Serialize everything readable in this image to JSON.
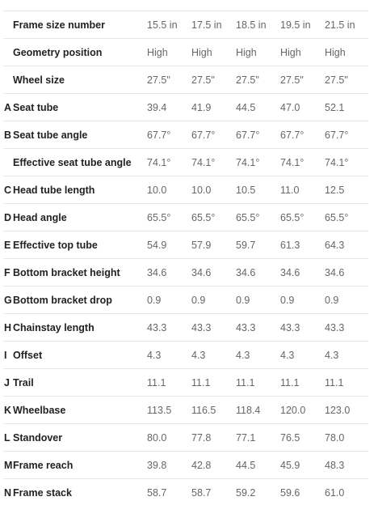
{
  "sizes": [
    "15.5 in",
    "17.5 in",
    "18.5 in",
    "19.5 in",
    "21.5 in"
  ],
  "rows": [
    {
      "letter": "",
      "label": "Frame size number",
      "values": [
        "15.5 in",
        "17.5 in",
        "18.5 in",
        "19.5 in",
        "21.5 in"
      ]
    },
    {
      "letter": "",
      "label": "Geometry position",
      "values": [
        "High",
        "High",
        "High",
        "High",
        "High"
      ]
    },
    {
      "letter": "",
      "label": "Wheel size",
      "values": [
        "27.5\"",
        "27.5\"",
        "27.5\"",
        "27.5\"",
        "27.5\""
      ]
    },
    {
      "letter": "A",
      "label": "Seat tube",
      "values": [
        "39.4",
        "41.9",
        "44.5",
        "47.0",
        "52.1"
      ]
    },
    {
      "letter": "B",
      "label": "Seat tube angle",
      "values": [
        "67.7°",
        "67.7°",
        "67.7°",
        "67.7°",
        "67.7°"
      ]
    },
    {
      "letter": "",
      "label": "Effective seat tube angle",
      "values": [
        "74.1°",
        "74.1°",
        "74.1°",
        "74.1°",
        "74.1°"
      ]
    },
    {
      "letter": "C",
      "label": "Head tube length",
      "values": [
        "10.0",
        "10.0",
        "10.5",
        "11.0",
        "12.5"
      ]
    },
    {
      "letter": "D",
      "label": "Head angle",
      "values": [
        "65.5°",
        "65.5°",
        "65.5°",
        "65.5°",
        "65.5°"
      ]
    },
    {
      "letter": "E",
      "label": "Effective top tube",
      "values": [
        "54.9",
        "57.9",
        "59.7",
        "61.3",
        "64.3"
      ]
    },
    {
      "letter": "F",
      "label": "Bottom bracket height",
      "values": [
        "34.6",
        "34.6",
        "34.6",
        "34.6",
        "34.6"
      ]
    },
    {
      "letter": "G",
      "label": "Bottom bracket drop",
      "values": [
        "0.9",
        "0.9",
        "0.9",
        "0.9",
        "0.9"
      ]
    },
    {
      "letter": "H",
      "label": "Chainstay length",
      "values": [
        "43.3",
        "43.3",
        "43.3",
        "43.3",
        "43.3"
      ]
    },
    {
      "letter": "I",
      "label": "Offset",
      "values": [
        "4.3",
        "4.3",
        "4.3",
        "4.3",
        "4.3"
      ]
    },
    {
      "letter": "J",
      "label": "Trail",
      "values": [
        "11.1",
        "11.1",
        "11.1",
        "11.1",
        "11.1"
      ]
    },
    {
      "letter": "K",
      "label": "Wheelbase",
      "values": [
        "113.5",
        "116.5",
        "118.4",
        "120.0",
        "123.0"
      ]
    },
    {
      "letter": "L",
      "label": "Standover",
      "values": [
        "80.0",
        "77.8",
        "77.1",
        "76.5",
        "78.0"
      ]
    },
    {
      "letter": "M",
      "label": "Frame reach",
      "values": [
        "39.8",
        "42.8",
        "44.5",
        "45.9",
        "48.3"
      ]
    },
    {
      "letter": "N",
      "label": "Frame stack",
      "values": [
        "58.7",
        "58.7",
        "59.2",
        "59.6",
        "61.0"
      ]
    }
  ]
}
